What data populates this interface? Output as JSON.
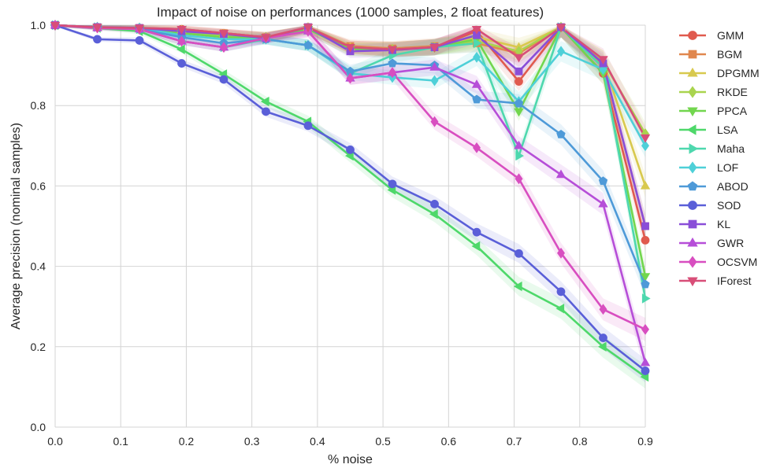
{
  "chart_data": {
    "type": "line",
    "title": "Impact of noise on performances (1000 samples, 2 float features)",
    "xlabel": "% noise",
    "ylabel": "Average precision (nominal samples)",
    "xlim": [
      0.0,
      0.9
    ],
    "ylim": [
      0.0,
      1.0
    ],
    "xticks": [
      "0.0",
      "0.1",
      "0.2",
      "0.3",
      "0.4",
      "0.5",
      "0.6",
      "0.7",
      "0.8",
      "0.9"
    ],
    "yticks": [
      "0.0",
      "0.2",
      "0.4",
      "0.6",
      "0.8",
      "1.0"
    ],
    "grid": true,
    "legend_position": "right",
    "x": [
      0.0,
      0.0643,
      0.1286,
      0.1929,
      0.2571,
      0.3214,
      0.3857,
      0.45,
      0.5143,
      0.5786,
      0.6429,
      0.7071,
      0.7714,
      0.8357,
      0.9
    ],
    "series": [
      {
        "name": "GMM",
        "color": "#e05a4e",
        "marker": "circle",
        "values": [
          1.0,
          0.995,
          0.993,
          0.99,
          0.98,
          0.97,
          0.995,
          0.945,
          0.94,
          0.945,
          0.985,
          0.86,
          0.995,
          0.88,
          0.465
        ]
      },
      {
        "name": "BGM",
        "color": "#e0874e",
        "marker": "square",
        "values": [
          1.0,
          0.995,
          0.993,
          0.988,
          0.98,
          0.97,
          0.995,
          0.948,
          0.942,
          0.948,
          0.955,
          0.93,
          0.995,
          0.9,
          0.5
        ]
      },
      {
        "name": "DPGMM",
        "color": "#d8c94e",
        "marker": "triangle-up",
        "values": [
          1.0,
          0.995,
          0.993,
          0.988,
          0.978,
          0.97,
          0.995,
          0.945,
          0.94,
          0.945,
          0.97,
          0.945,
          0.995,
          0.91,
          0.6
        ]
      },
      {
        "name": "RKDE",
        "color": "#a9d44e",
        "marker": "diamond",
        "values": [
          1.0,
          0.995,
          0.993,
          0.985,
          0.975,
          0.97,
          0.99,
          0.94,
          0.94,
          0.945,
          0.96,
          0.935,
          0.995,
          0.91,
          0.73
        ]
      },
      {
        "name": "PPCA",
        "color": "#72d64e",
        "marker": "triangle-down",
        "values": [
          1.0,
          0.995,
          0.99,
          0.98,
          0.97,
          0.968,
          0.99,
          0.94,
          0.938,
          0.945,
          0.965,
          0.785,
          0.995,
          0.88,
          0.375
        ]
      },
      {
        "name": "LSA",
        "color": "#4ed86a",
        "marker": "triangle-left",
        "values": [
          1.0,
          0.993,
          0.985,
          0.94,
          0.878,
          0.81,
          0.76,
          0.675,
          0.59,
          0.53,
          0.45,
          0.35,
          0.295,
          0.2,
          0.125
        ]
      },
      {
        "name": "Maha",
        "color": "#4ed8ae",
        "marker": "triangle-right",
        "values": [
          1.0,
          0.995,
          0.99,
          0.96,
          0.945,
          0.965,
          0.95,
          0.88,
          0.925,
          0.945,
          0.955,
          0.675,
          0.995,
          0.895,
          0.32
        ]
      },
      {
        "name": "LOF",
        "color": "#4ed0d8",
        "marker": "diamond",
        "values": [
          1.0,
          0.995,
          0.993,
          0.975,
          0.965,
          0.965,
          0.95,
          0.88,
          0.87,
          0.862,
          0.92,
          0.81,
          0.935,
          0.89,
          0.7
        ]
      },
      {
        "name": "ABOD",
        "color": "#4e9ad8",
        "marker": "pentagon",
        "values": [
          1.0,
          0.995,
          0.99,
          0.97,
          0.955,
          0.965,
          0.95,
          0.885,
          0.905,
          0.9,
          0.815,
          0.805,
          0.728,
          0.612,
          0.355
        ]
      },
      {
        "name": "SOD",
        "color": "#5a5fd8",
        "marker": "circle",
        "values": [
          1.0,
          0.965,
          0.962,
          0.905,
          0.865,
          0.785,
          0.75,
          0.69,
          0.605,
          0.555,
          0.485,
          0.432,
          0.337,
          0.222,
          0.14
        ]
      },
      {
        "name": "KL",
        "color": "#8a4ed8",
        "marker": "square",
        "values": [
          1.0,
          0.995,
          0.993,
          0.985,
          0.978,
          0.968,
          0.995,
          0.935,
          0.938,
          0.945,
          0.975,
          0.885,
          0.995,
          0.905,
          0.5
        ]
      },
      {
        "name": "GWR",
        "color": "#b64ed8",
        "marker": "triangle-up",
        "values": [
          1.0,
          0.993,
          0.99,
          0.96,
          0.945,
          0.968,
          0.985,
          0.868,
          0.882,
          0.895,
          0.852,
          0.7,
          0.628,
          0.555,
          0.16
        ]
      },
      {
        "name": "OCSVM",
        "color": "#d84ec0",
        "marker": "diamond",
        "values": [
          1.0,
          0.993,
          0.99,
          0.96,
          0.945,
          0.968,
          0.985,
          0.868,
          0.882,
          0.76,
          0.695,
          0.618,
          0.433,
          0.293,
          0.243
        ]
      },
      {
        "name": "IForest",
        "color": "#d84e78",
        "marker": "triangle-down",
        "values": [
          1.0,
          0.995,
          0.993,
          0.99,
          0.98,
          0.97,
          0.995,
          0.945,
          0.94,
          0.945,
          0.99,
          0.92,
          0.995,
          0.915,
          0.72
        ]
      }
    ]
  }
}
